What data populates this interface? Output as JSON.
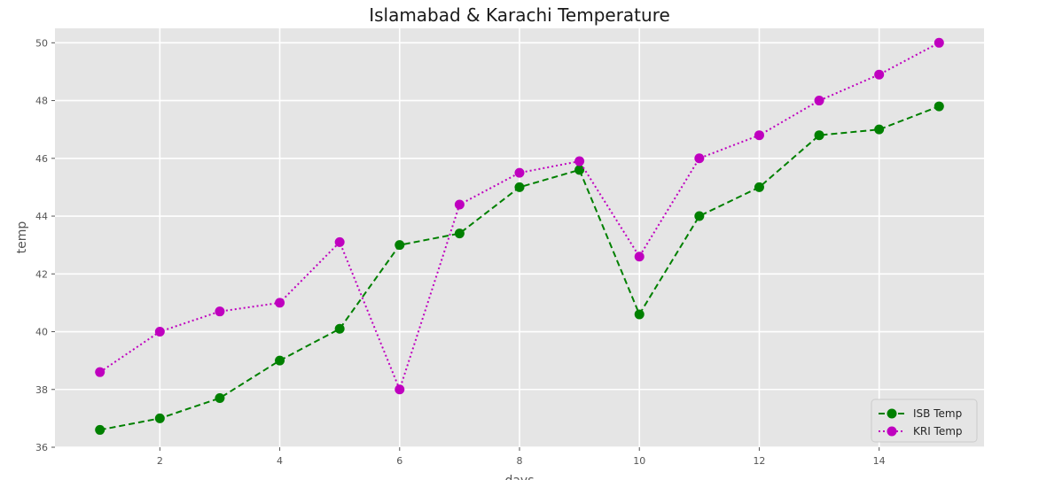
{
  "chart_data": {
    "type": "line",
    "title": "Islamabad & Karachi Temperature",
    "xlabel": "days",
    "ylabel": "temp",
    "xlim": [
      0.25,
      15.75
    ],
    "ylim": [
      36.0,
      50.5
    ],
    "xticks": [
      2,
      4,
      6,
      8,
      10,
      12,
      14
    ],
    "yticks": [
      36,
      38,
      40,
      42,
      44,
      46,
      48,
      50
    ],
    "grid": true,
    "legend_position": "bottom-right",
    "x": [
      1,
      2,
      3,
      4,
      5,
      6,
      7,
      8,
      9,
      10,
      11,
      12,
      13,
      14,
      15
    ],
    "series": [
      {
        "name": "ISB Temp",
        "color": "#008000",
        "line_style": "dashed",
        "marker": "circle",
        "values": [
          36.6,
          37.0,
          37.7,
          39.0,
          40.1,
          43.0,
          43.4,
          45.0,
          45.6,
          40.6,
          44.0,
          45.0,
          46.8,
          47.0,
          47.8
        ]
      },
      {
        "name": "KRI Temp",
        "color": "#bf00bf",
        "line_style": "dotted",
        "marker": "circle",
        "values": [
          38.6,
          40.0,
          40.7,
          41.0,
          43.1,
          38.0,
          44.4,
          45.5,
          45.9,
          42.6,
          46.0,
          46.8,
          48.0,
          48.9,
          50.0
        ]
      }
    ],
    "background_color": "#e5e5e5",
    "grid_color": "#ffffff"
  }
}
